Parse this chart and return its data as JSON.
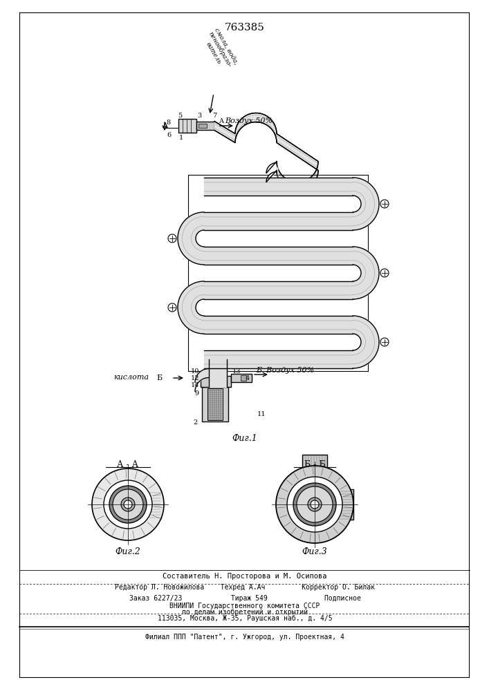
{
  "patent_number": "763385",
  "background_color": "#ffffff",
  "line_color": "#000000",
  "fig1_label": "Фиг.1",
  "fig2_label": "Фиг.2",
  "fig3_label": "Фиг.3",
  "section_aa": "А - А",
  "section_bb": "Б - Б",
  "label_air_top": "Воздух 50%",
  "label_air_bottom": "Б  Воздух 50%",
  "label_resin": "смола, вода,\nпенообразо-\nватель",
  "label_acid": "кислота",
  "footer_line1": "Составитель Н. Просторова и М. Осипова",
  "footer_line2": "Редактор Л. Новожилова    Техред А.Ач         Корректор О. Билак",
  "footer_line3": "Заказ 6227/23            Тираж 549              Подписное",
  "footer_line4": "ВНИИПИ Государственного комитета СССР",
  "footer_line5": "по делам изобретений и открытий",
  "footer_line6": "113035, Москва, Ж-35, Раушская наб., д. 4/5",
  "footer_line7": "Филиал ППП \"Патент\", г. Ужгород, ул. Проектная, 4"
}
